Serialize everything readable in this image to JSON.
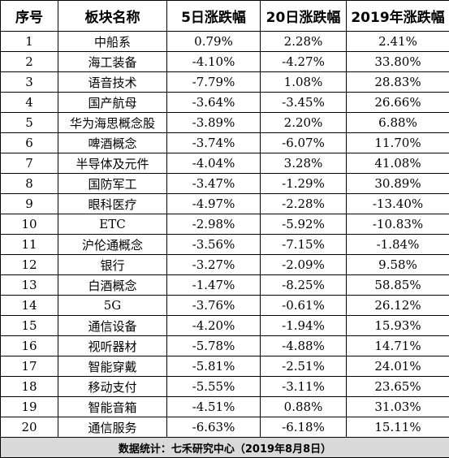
{
  "header": {
    "rank": "序号",
    "name": "板块名称",
    "change_5d": "5日涨跌幅",
    "change_20d": "20日涨跌幅",
    "change_2019": "2019年涨跌幅"
  },
  "rows": [
    {
      "rank": "1",
      "name": "中船系",
      "change_5d": "0.79%",
      "change_20d": "2.28%",
      "change_2019": "2.41%"
    },
    {
      "rank": "2",
      "name": "海工装备",
      "change_5d": "-4.10%",
      "change_20d": "-4.27%",
      "change_2019": "33.80%"
    },
    {
      "rank": "3",
      "name": "语音技术",
      "change_5d": "-7.79%",
      "change_20d": "1.08%",
      "change_2019": "28.83%"
    },
    {
      "rank": "4",
      "name": "国产航母",
      "change_5d": "-3.64%",
      "change_20d": "-3.45%",
      "change_2019": "26.66%"
    },
    {
      "rank": "5",
      "name": "华为海思概念股",
      "change_5d": "-3.89%",
      "change_20d": "2.20%",
      "change_2019": "6.88%"
    },
    {
      "rank": "6",
      "name": "啤酒概念",
      "change_5d": "-3.74%",
      "change_20d": "-6.07%",
      "change_2019": "11.70%"
    },
    {
      "rank": "7",
      "name": "半导体及元件",
      "change_5d": "-4.04%",
      "change_20d": "3.28%",
      "change_2019": "41.08%"
    },
    {
      "rank": "8",
      "name": "国防军工",
      "change_5d": "-3.47%",
      "change_20d": "-1.29%",
      "change_2019": "30.89%"
    },
    {
      "rank": "9",
      "name": "眼科医疗",
      "change_5d": "-4.97%",
      "change_20d": "-2.28%",
      "change_2019": "-13.40%"
    },
    {
      "rank": "10",
      "name": "ETC",
      "change_5d": "-2.98%",
      "change_20d": "-5.92%",
      "change_2019": "-10.83%"
    },
    {
      "rank": "11",
      "name": "沪伦通概念",
      "change_5d": "-3.56%",
      "change_20d": "-7.15%",
      "change_2019": "-1.84%"
    },
    {
      "rank": "12",
      "name": "银行",
      "change_5d": "-3.27%",
      "change_20d": "-2.09%",
      "change_2019": "9.58%"
    },
    {
      "rank": "13",
      "name": "白酒概念",
      "change_5d": "-1.47%",
      "change_20d": "-8.25%",
      "change_2019": "58.85%"
    },
    {
      "rank": "14",
      "name": "5G",
      "change_5d": "-3.76%",
      "change_20d": "-0.61%",
      "change_2019": "26.12%"
    },
    {
      "rank": "15",
      "name": "通信设备",
      "change_5d": "-4.20%",
      "change_20d": "-1.94%",
      "change_2019": "15.93%"
    },
    {
      "rank": "16",
      "name": "视听器材",
      "change_5d": "-5.78%",
      "change_20d": "-4.88%",
      "change_2019": "14.71%"
    },
    {
      "rank": "17",
      "name": "智能穿戴",
      "change_5d": "-5.81%",
      "change_20d": "-2.51%",
      "change_2019": "24.01%"
    },
    {
      "rank": "18",
      "name": "移动支付",
      "change_5d": "-5.55%",
      "change_20d": "-3.11%",
      "change_2019": "23.65%"
    },
    {
      "rank": "19",
      "name": "智能音箱",
      "change_5d": "-4.51%",
      "change_20d": "0.88%",
      "change_2019": "31.03%"
    },
    {
      "rank": "20",
      "name": "通信服务",
      "change_5d": "-6.63%",
      "change_20d": "-6.18%",
      "change_2019": "15.11%"
    }
  ],
  "footer": {
    "source": "数据统计：七禾研究中心（2019年8月8日）"
  },
  "colors": {
    "footer_background": "#d9d9d9",
    "border": "#000000"
  }
}
